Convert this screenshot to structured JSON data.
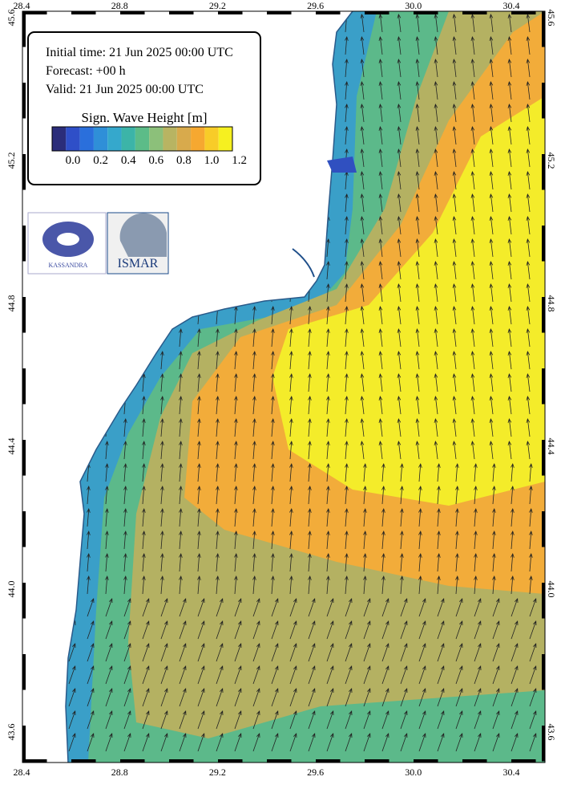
{
  "info": {
    "lines": [
      "Initial time: 21 Jun 2025 00:00 UTC",
      "Forecast: +00 h",
      "Valid: 21 Jun 2025 00:00 UTC"
    ]
  },
  "legend": {
    "title": "Sign. Wave Height [m]",
    "labels": [
      "0.0",
      "0.2",
      "0.4",
      "0.6",
      "0.8",
      "1.0",
      "1.2"
    ]
  },
  "axes": {
    "longitudes": [
      "28.4",
      "28.8",
      "29.2",
      "29.6",
      "30.0",
      "30.4"
    ],
    "latitudes": [
      "43.6",
      "44.0",
      "44.4",
      "44.8",
      "45.2",
      "45.6"
    ]
  },
  "logos": [
    "KASSANDRA",
    "ISMAR"
  ]
}
